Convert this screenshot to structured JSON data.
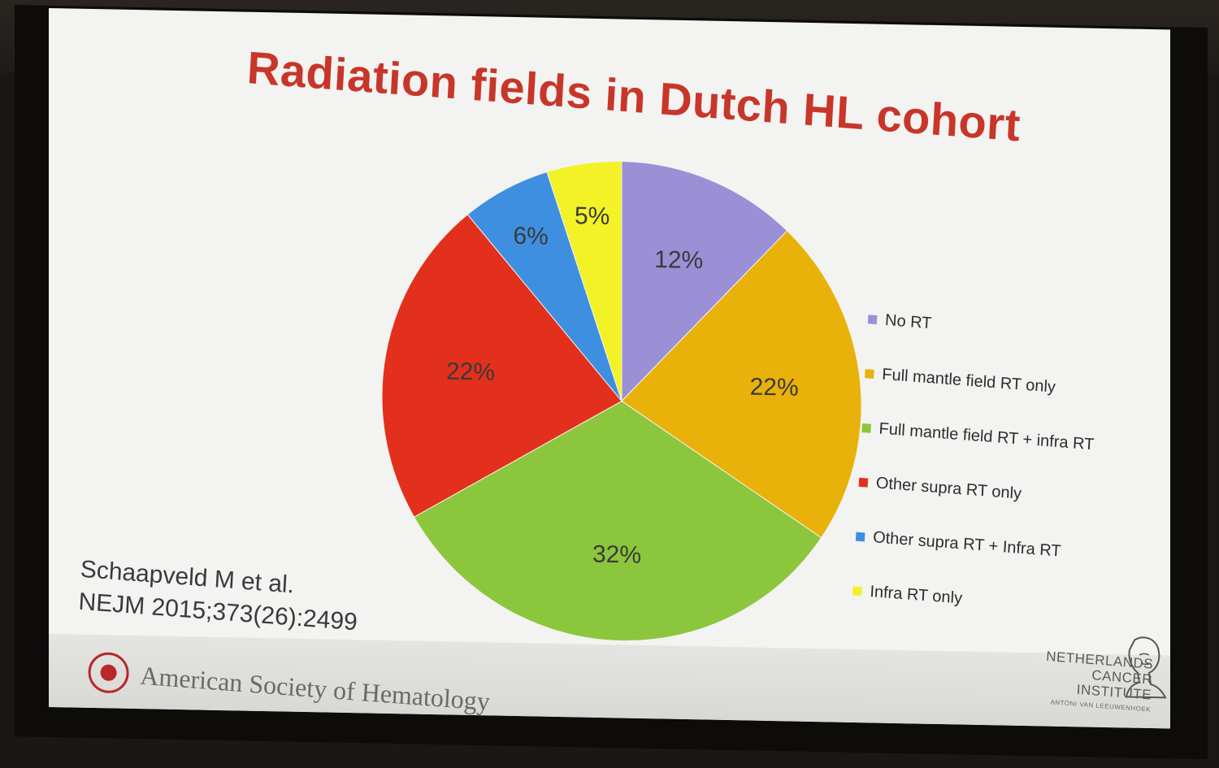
{
  "slide": {
    "title": "Radiation fields in Dutch HL cohort",
    "citation_line1": "Schaapveld M et al.",
    "citation_line2": "NEJM 2015;373(26):2499",
    "footer_left": "American Society of Hematology",
    "footer_right_lines": [
      "NETHERLANDS",
      "CANCER",
      "INSTITUTE"
    ],
    "footer_right_sub": "ANTONI VAN LEEUWENHOEK"
  },
  "chart_data": {
    "type": "pie",
    "title": "Radiation fields in Dutch HL cohort",
    "legend_position": "right",
    "slices": [
      {
        "label": "No RT",
        "value": 12,
        "display": "12%",
        "color": "#9b8fd6"
      },
      {
        "label": "Full mantle field RT only",
        "value": 22,
        "display": "22%",
        "color": "#e8b20a"
      },
      {
        "label": "Full mantle field RT + infra RT",
        "value": 32,
        "display": "32%",
        "color": "#8cc63c"
      },
      {
        "label": "Other supra RT only",
        "value": 22,
        "display": "22%",
        "color": "#e2301c"
      },
      {
        "label": "Other supra RT + Infra RT",
        "value": 6,
        "display": "6%",
        "color": "#3f8fe0"
      },
      {
        "label": "Infra RT only",
        "value": 5,
        "display": "5%",
        "color": "#f2f227"
      }
    ]
  }
}
